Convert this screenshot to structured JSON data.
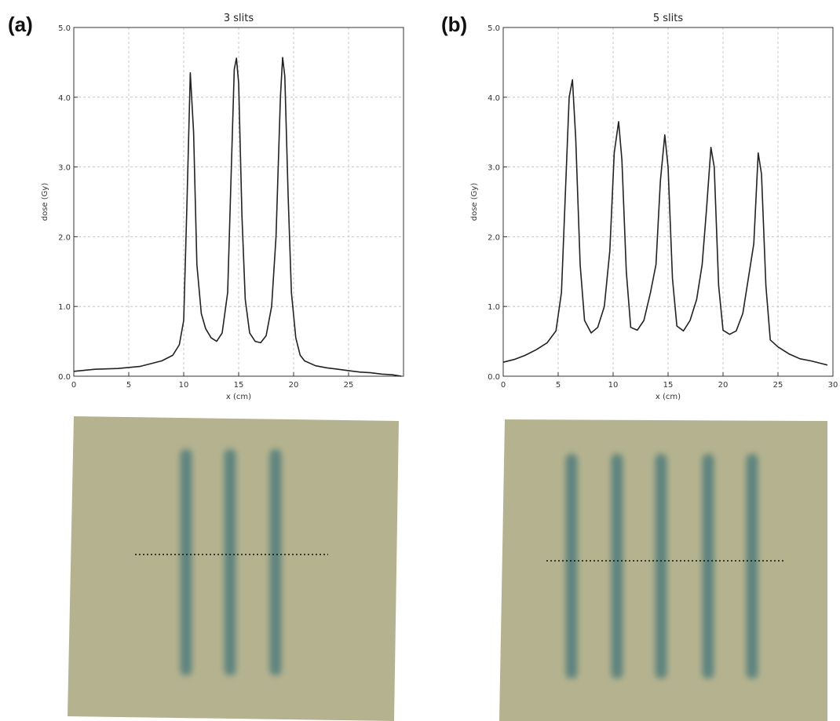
{
  "panels": [
    {
      "label": "(a)"
    },
    {
      "label": "(b)"
    }
  ],
  "colors": {
    "film": "#b5b38f",
    "stripe": "#4f7c7c",
    "line": "#222222",
    "grid": "#bbbbbb"
  },
  "chart_data": [
    {
      "type": "line",
      "title": "3 slits",
      "xlabel": "x (cm)",
      "ylabel": "dose (Gy)",
      "xlim": [
        0,
        30
      ],
      "ylim": [
        0,
        5
      ],
      "xticks": [
        0,
        5,
        10,
        15,
        20,
        25
      ],
      "xtick_labels": [
        "0",
        "5",
        "10",
        "15",
        "20",
        "25"
      ],
      "yticks": [
        0,
        1,
        2,
        3,
        4,
        5
      ],
      "ytick_labels": [
        "0.0",
        "1.0",
        "2.0",
        "3.0",
        "4.0",
        "5.0"
      ],
      "grid": true,
      "series": [
        {
          "x": [
            0,
            2,
            4,
            6,
            8,
            9,
            9.6,
            10,
            10.3,
            10.6,
            10.9,
            11.2,
            11.6,
            12,
            12.5,
            13,
            13.5,
            14,
            14.3,
            14.6,
            14.8,
            15,
            15.3,
            15.6,
            16,
            16.5,
            17,
            17.5,
            18,
            18.4,
            18.8,
            19,
            19.2,
            19.5,
            19.8,
            20.2,
            20.6,
            21,
            22,
            23,
            24,
            25,
            26,
            27,
            28,
            29,
            29.8
          ],
          "y": [
            0.07,
            0.1,
            0.11,
            0.14,
            0.22,
            0.3,
            0.45,
            0.8,
            2.5,
            4.35,
            3.5,
            1.6,
            0.9,
            0.68,
            0.55,
            0.5,
            0.62,
            1.2,
            2.8,
            4.4,
            4.56,
            4.2,
            2.3,
            1.1,
            0.62,
            0.5,
            0.48,
            0.58,
            1.0,
            2.0,
            4.0,
            4.57,
            4.3,
            2.6,
            1.2,
            0.55,
            0.3,
            0.22,
            0.15,
            0.12,
            0.1,
            0.08,
            0.06,
            0.05,
            0.03,
            0.02,
            0.0
          ]
        }
      ]
    },
    {
      "type": "line",
      "title": "5 slits",
      "xlabel": "x (cm)",
      "ylabel": "dose (Gy)",
      "xlim": [
        0,
        30
      ],
      "ylim": [
        0,
        5
      ],
      "xticks": [
        0,
        5,
        10,
        15,
        20,
        25,
        30
      ],
      "xtick_labels": [
        "0",
        "5",
        "10",
        "15",
        "20",
        "25",
        "30"
      ],
      "yticks": [
        0,
        1,
        2,
        3,
        4,
        5
      ],
      "ytick_labels": [
        "0.0",
        "1.0",
        "2.0",
        "3.0",
        "4.0",
        "5.0"
      ],
      "grid": true,
      "series": [
        {
          "x": [
            0,
            1,
            2,
            3,
            4,
            4.8,
            5.3,
            5.7,
            6.0,
            6.3,
            6.6,
            7.0,
            7.4,
            8,
            8.6,
            9.2,
            9.7,
            10.1,
            10.5,
            10.8,
            11.2,
            11.6,
            12.2,
            12.8,
            13.4,
            13.9,
            14.3,
            14.7,
            15.0,
            15.4,
            15.8,
            16.4,
            17,
            17.6,
            18.1,
            18.5,
            18.9,
            19.2,
            19.6,
            20.0,
            20.6,
            21.2,
            21.8,
            22.3,
            22.8,
            23.2,
            23.5,
            23.9,
            24.3,
            25,
            26,
            27,
            28,
            29,
            29.5
          ],
          "y": [
            0.2,
            0.24,
            0.3,
            0.38,
            0.48,
            0.65,
            1.2,
            2.8,
            4.0,
            4.25,
            3.4,
            1.6,
            0.8,
            0.62,
            0.7,
            1.0,
            1.8,
            3.2,
            3.65,
            3.1,
            1.5,
            0.7,
            0.66,
            0.8,
            1.2,
            1.6,
            2.8,
            3.46,
            3.0,
            1.4,
            0.72,
            0.65,
            0.8,
            1.1,
            1.6,
            2.4,
            3.28,
            3.0,
            1.3,
            0.66,
            0.6,
            0.65,
            0.9,
            1.4,
            1.9,
            3.2,
            2.9,
            1.3,
            0.52,
            0.42,
            0.32,
            0.25,
            0.22,
            0.18,
            0.16
          ]
        }
      ]
    }
  ],
  "films": [
    {
      "stripes": 3
    },
    {
      "stripes": 5
    }
  ]
}
